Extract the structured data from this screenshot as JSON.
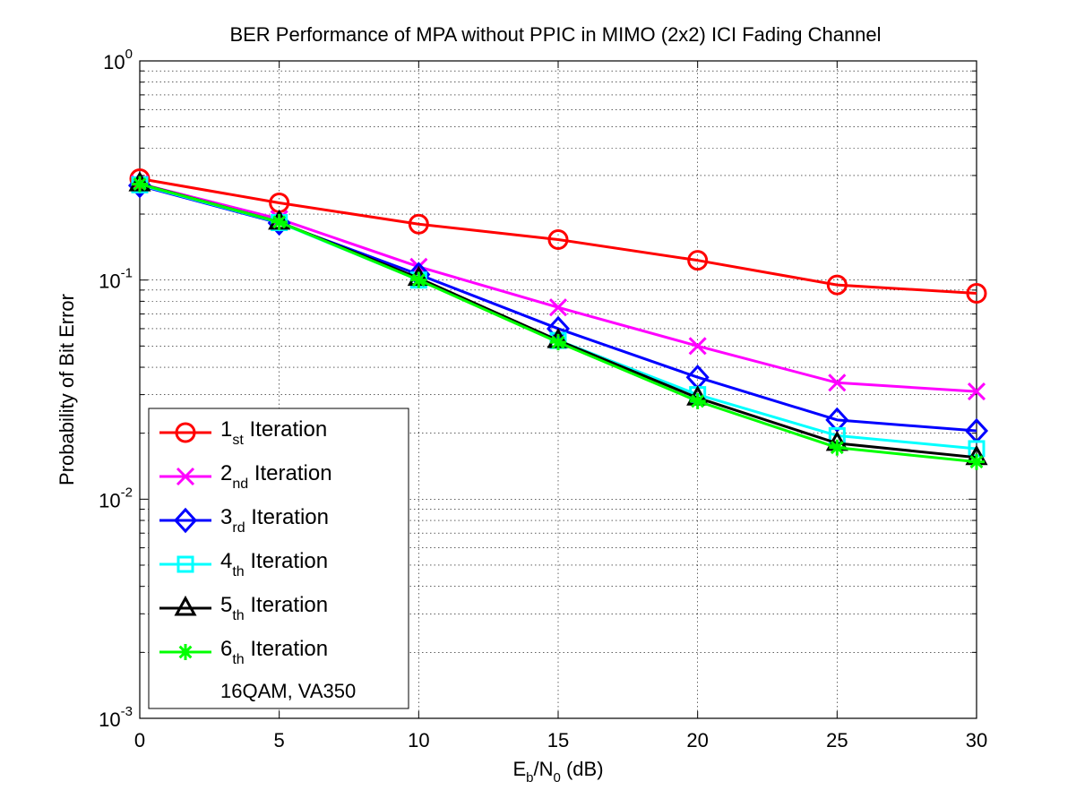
{
  "chart_data": {
    "type": "line",
    "title": "BER Performance of MPA without PPIC in MIMO (2x2) ICI Fading Channel",
    "xlabel": {
      "main": "E",
      "sub1": "b",
      "mid": "/N",
      "sub2": "0",
      "unit": " (dB)"
    },
    "ylabel": "Probability of Bit Error",
    "x": [
      0,
      5,
      10,
      15,
      20,
      25,
      30
    ],
    "xlim": [
      0,
      30
    ],
    "ylim": [
      0.001,
      1
    ],
    "yscale": "log",
    "grid": true,
    "x_tick_labels": [
      "0",
      "5",
      "10",
      "15",
      "20",
      "25",
      "30"
    ],
    "y_tick_labels": [
      {
        "value": 1,
        "base": "10",
        "exp": "0"
      },
      {
        "value": 0.1,
        "base": "10",
        "exp": "-1"
      },
      {
        "value": 0.01,
        "base": "10",
        "exp": "-2"
      },
      {
        "value": 0.001,
        "base": "10",
        "exp": "-3"
      }
    ],
    "legend_position": "bottom-left",
    "legend_note": "16QAM, VA350",
    "series": [
      {
        "name": "1st Iteration",
        "label_num": "1",
        "label_sub": "st",
        "label_rest": " Iteration",
        "color": "#ff0000",
        "marker": "circle",
        "values": [
          0.29,
          0.225,
          0.18,
          0.153,
          0.123,
          0.095,
          0.087
        ]
      },
      {
        "name": "2nd Iteration",
        "label_num": "2",
        "label_sub": "nd",
        "label_rest": " Iteration",
        "color": "#ff00ff",
        "marker": "x",
        "values": [
          0.275,
          0.19,
          0.115,
          0.075,
          0.05,
          0.034,
          0.031
        ]
      },
      {
        "name": "3rd Iteration",
        "label_num": "3",
        "label_sub": "rd",
        "label_rest": " Iteration",
        "color": "#0000ff",
        "marker": "diamond",
        "values": [
          0.27,
          0.182,
          0.106,
          0.06,
          0.036,
          0.023,
          0.0205
        ]
      },
      {
        "name": "4th Iteration",
        "label_num": "4",
        "label_sub": "th",
        "label_rest": " Iteration",
        "color": "#00ffff",
        "marker": "square",
        "values": [
          0.272,
          0.183,
          0.1,
          0.053,
          0.03,
          0.0195,
          0.017
        ]
      },
      {
        "name": "5th Iteration",
        "label_num": "5",
        "label_sub": "th",
        "label_rest": " Iteration",
        "color": "#000000",
        "marker": "triangle",
        "values": [
          0.275,
          0.184,
          0.102,
          0.053,
          0.029,
          0.018,
          0.0155
        ]
      },
      {
        "name": "6th Iteration",
        "label_num": "6",
        "label_sub": "th",
        "label_rest": " Iteration",
        "color": "#00ff00",
        "marker": "star",
        "values": [
          0.274,
          0.184,
          0.1,
          0.052,
          0.028,
          0.0172,
          0.0148
        ]
      }
    ]
  }
}
